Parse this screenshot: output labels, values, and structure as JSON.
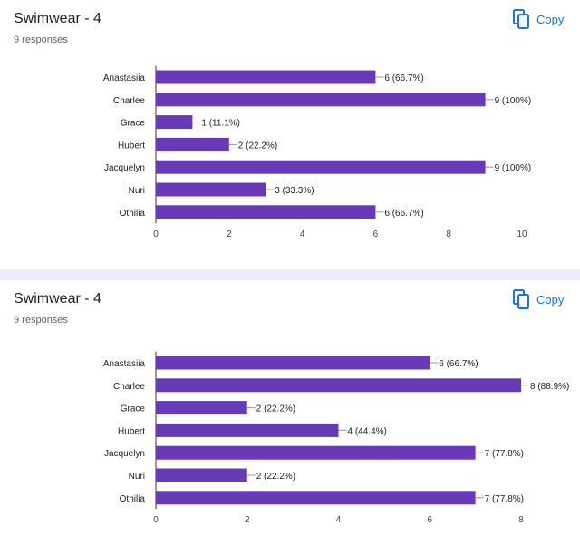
{
  "colors": {
    "bar": "#673ab7",
    "accent": "#1a73e8",
    "axis": "#333333",
    "text": "#202124"
  },
  "cards": [
    {
      "title": "Swimwear - 4",
      "responses": "9 responses",
      "copy_label": "Copy",
      "copy_icon": "copy-icon"
    },
    {
      "title": "Swimwear - 4",
      "responses": "9 responses",
      "copy_label": "Copy",
      "copy_icon": "copy-icon"
    }
  ],
  "chart_data": [
    {
      "type": "bar",
      "orientation": "horizontal",
      "categories": [
        "Anastasiia",
        "Charlee",
        "Grace",
        "Hubert",
        "Jacquelyn",
        "Nuri",
        "Othilia"
      ],
      "values": [
        6,
        9,
        1,
        2,
        9,
        3,
        6
      ],
      "labels": [
        "6 (66.7%)",
        "9 (100%)",
        "1 (11.1%)",
        "2 (22.2%)",
        "9 (100%)",
        "3 (33.3%)",
        "6 (66.7%)"
      ],
      "xlim": [
        0,
        10
      ],
      "ticks": [
        0,
        2,
        4,
        6,
        8,
        10
      ],
      "grid": false
    },
    {
      "type": "bar",
      "orientation": "horizontal",
      "categories": [
        "Anastasiia",
        "Charlee",
        "Grace",
        "Hubert",
        "Jacquelyn",
        "Nuri",
        "Othilia"
      ],
      "values": [
        6,
        8,
        2,
        4,
        7,
        2,
        7
      ],
      "labels": [
        "6 (66.7%)",
        "8 (88.9%)",
        "2 (22.2%)",
        "4 (44.4%)",
        "7 (77.8%)",
        "2 (22.2%)",
        "7 (77.8%)"
      ],
      "xlim": [
        0,
        8
      ],
      "ticks": [
        0,
        2,
        4,
        6,
        8
      ],
      "grid": false
    }
  ]
}
